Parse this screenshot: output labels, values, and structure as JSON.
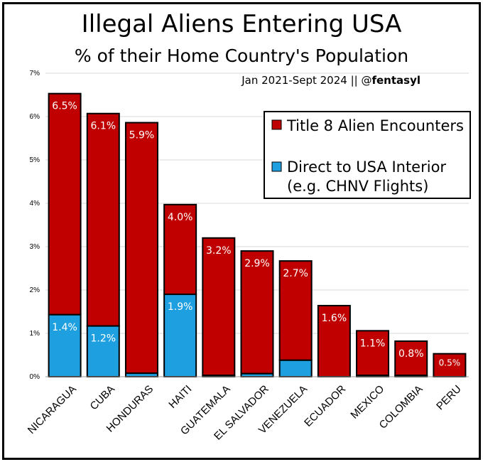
{
  "title": "Illegal Aliens Entering USA",
  "subtitle": "% of their Home Country's Population",
  "note": {
    "period": "Jan 2021-Sept 2024",
    "separator": "||",
    "at": "@",
    "handle": "fentasyl"
  },
  "colors": {
    "title8": "#c00000",
    "direct": "#1ea0e0",
    "grid": "#d9d9d9",
    "border": "#000000"
  },
  "chart_data": {
    "type": "bar",
    "stacked": true,
    "categories": [
      "NICARAGUA",
      "CUBA",
      "HONDURAS",
      "HAITI",
      "GUATEMALA",
      "EL SALVADOR",
      "VENEZUELA",
      "ECUADOR",
      "MEXICO",
      "COLOMBIA",
      "PERU"
    ],
    "series": [
      {
        "name": "Direct to USA Interior\n(e.g. CHNV Flights)",
        "values": [
          1.43,
          1.17,
          0.08,
          1.9,
          0.03,
          0.07,
          0.38,
          0.0,
          0.03,
          0.03,
          0.0
        ]
      },
      {
        "name": "Title 8 Alien Encounters",
        "values": [
          5.1,
          4.9,
          5.78,
          2.07,
          3.17,
          2.83,
          2.29,
          1.64,
          1.03,
          0.79,
          0.53
        ]
      }
    ],
    "totals": [
      6.53,
      6.07,
      5.86,
      3.97,
      3.2,
      2.9,
      2.67,
      1.64,
      1.06,
      0.82,
      0.53
    ],
    "total_labels": [
      "6.5%",
      "6.1%",
      "5.9%",
      "4.0%",
      "3.2%",
      "2.9%",
      "2.7%",
      "1.6%",
      "1.1%",
      "0.8%",
      "0.5%"
    ],
    "direct_labels": [
      "1.4%",
      "1.2%",
      "",
      "1.9%",
      "",
      "",
      "",
      "",
      "",
      "",
      ""
    ],
    "ylim": [
      0,
      7
    ],
    "yticks": [
      0,
      1,
      2,
      3,
      4,
      5,
      6,
      7
    ],
    "ytick_labels": [
      "0%",
      "1%",
      "2%",
      "3%",
      "4%",
      "5%",
      "6%",
      "7%"
    ],
    "grid": true,
    "legend": {
      "placement": "top-right",
      "items": [
        {
          "label": "Title 8 Alien Encounters",
          "color": "#c00000"
        },
        {
          "label": "Direct to USA Interior",
          "label2": "(e.g. CHNV Flights)",
          "color": "#1ea0e0"
        }
      ]
    },
    "xlabel": "",
    "ylabel": ""
  }
}
